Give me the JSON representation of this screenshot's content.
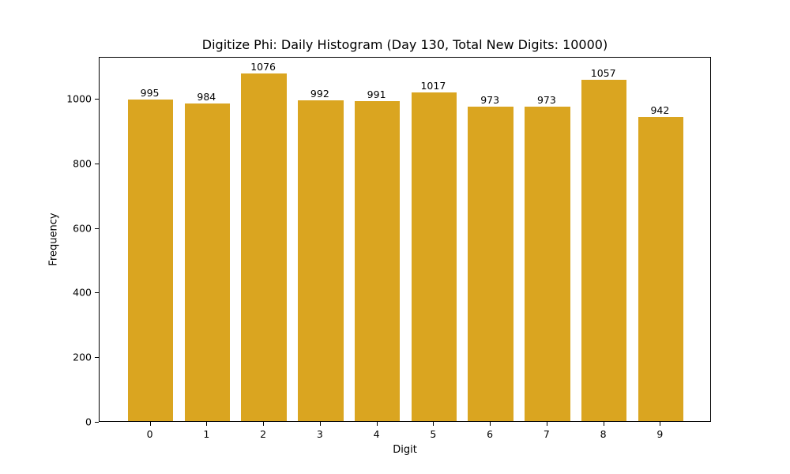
{
  "chart_data": {
    "type": "bar",
    "title": "Digitize Phi: Daily Histogram (Day 130, Total New Digits: 10000)",
    "xlabel": "Digit",
    "ylabel": "Frequency",
    "categories": [
      "0",
      "1",
      "2",
      "3",
      "4",
      "5",
      "6",
      "7",
      "8",
      "9"
    ],
    "values": [
      995,
      984,
      1076,
      992,
      991,
      1017,
      973,
      973,
      1057,
      942
    ],
    "yticks": [
      0,
      200,
      400,
      600,
      800,
      1000
    ],
    "ylim": [
      0,
      1130
    ],
    "bar_color": "#DAA520",
    "grid": false,
    "legend": null,
    "data_labels": true
  }
}
